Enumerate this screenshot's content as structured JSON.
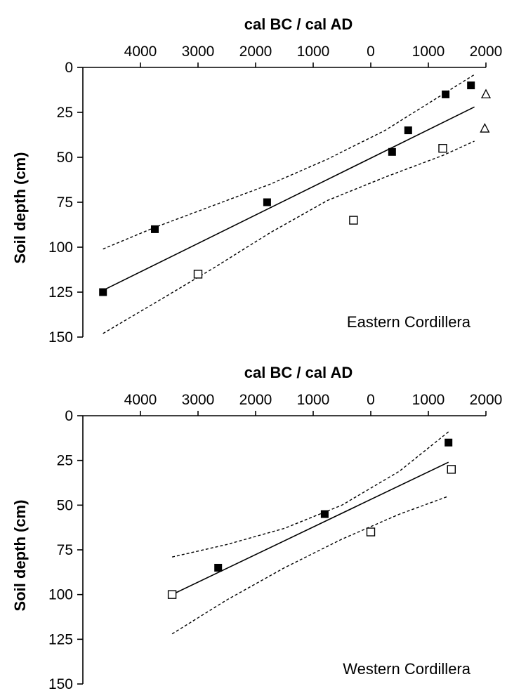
{
  "chart_data": [
    {
      "type": "scatter",
      "xlabel": "cal BC / cal AD",
      "ylabel": "Soil depth (cm)",
      "annotation": "Eastern Cordillera",
      "x_ticks": [
        {
          "value": -4000,
          "label": "4000"
        },
        {
          "value": -3000,
          "label": "3000"
        },
        {
          "value": -2000,
          "label": "2000"
        },
        {
          "value": -1000,
          "label": "1000"
        },
        {
          "value": 0,
          "label": "0"
        },
        {
          "value": 1000,
          "label": "1000"
        },
        {
          "value": 2000,
          "label": "2000"
        }
      ],
      "y_ticks": [
        0,
        25,
        50,
        75,
        100,
        125,
        150
      ],
      "xlim": [
        -5000,
        2000
      ],
      "ylim": [
        0,
        150
      ],
      "y_inverted": true,
      "grid": false,
      "series": [
        {
          "marker": "filled-square",
          "points": [
            [
              -4650,
              125
            ],
            [
              -3750,
              90
            ],
            [
              -1800,
              75
            ],
            [
              370,
              47
            ],
            [
              650,
              35
            ],
            [
              1300,
              15
            ],
            [
              1740,
              10
            ]
          ]
        },
        {
          "marker": "open-square",
          "points": [
            [
              -3000,
              115
            ],
            [
              -300,
              85
            ],
            [
              1250,
              45
            ]
          ]
        },
        {
          "marker": "open-triangle",
          "points": [
            [
              2000,
              15
            ],
            [
              1980,
              34
            ]
          ]
        }
      ],
      "fit_line": {
        "x": [
          -4650,
          1800
        ],
        "y": [
          124,
          22
        ]
      },
      "ci_upper": {
        "x": [
          -4650,
          -3750,
          -2750,
          -1750,
          -750,
          250,
          1250,
          1800
        ],
        "y": [
          101,
          89,
          77,
          65,
          51,
          35,
          15,
          4
        ]
      },
      "ci_lower": {
        "x": [
          -4650,
          -3750,
          -2750,
          -1750,
          -750,
          250,
          1250,
          1800
        ],
        "y": [
          148,
          131,
          112,
          92,
          74,
          61,
          49,
          41
        ]
      }
    },
    {
      "type": "scatter",
      "xlabel": "cal BC / cal AD",
      "ylabel": "Soil depth (cm)",
      "annotation": "Western Cordillera",
      "x_ticks": [
        {
          "value": -4000,
          "label": "4000"
        },
        {
          "value": -3000,
          "label": "3000"
        },
        {
          "value": -2000,
          "label": "2000"
        },
        {
          "value": -1000,
          "label": "1000"
        },
        {
          "value": 0,
          "label": "0"
        },
        {
          "value": 1000,
          "label": "1000"
        },
        {
          "value": 2000,
          "label": "2000"
        }
      ],
      "y_ticks": [
        0,
        25,
        50,
        75,
        100,
        125,
        150
      ],
      "xlim": [
        -5000,
        2000
      ],
      "ylim": [
        0,
        150
      ],
      "y_inverted": true,
      "grid": false,
      "series": [
        {
          "marker": "filled-square",
          "points": [
            [
              -2650,
              85
            ],
            [
              -800,
              55
            ],
            [
              1350,
              15
            ]
          ]
        },
        {
          "marker": "open-square",
          "points": [
            [
              -3450,
              100
            ],
            [
              0,
              65
            ],
            [
              1400,
              30
            ]
          ]
        }
      ],
      "fit_line": {
        "x": [
          -3450,
          1350
        ],
        "y": [
          100,
          26
        ]
      },
      "ci_upper": {
        "x": [
          -3450,
          -2500,
          -1500,
          -500,
          500,
          1350
        ],
        "y": [
          79,
          72,
          63,
          50,
          31,
          9
        ]
      },
      "ci_lower": {
        "x": [
          -3450,
          -2500,
          -1500,
          -500,
          500,
          1350
        ],
        "y": [
          122,
          103,
          85,
          69,
          55,
          45
        ]
      }
    }
  ]
}
